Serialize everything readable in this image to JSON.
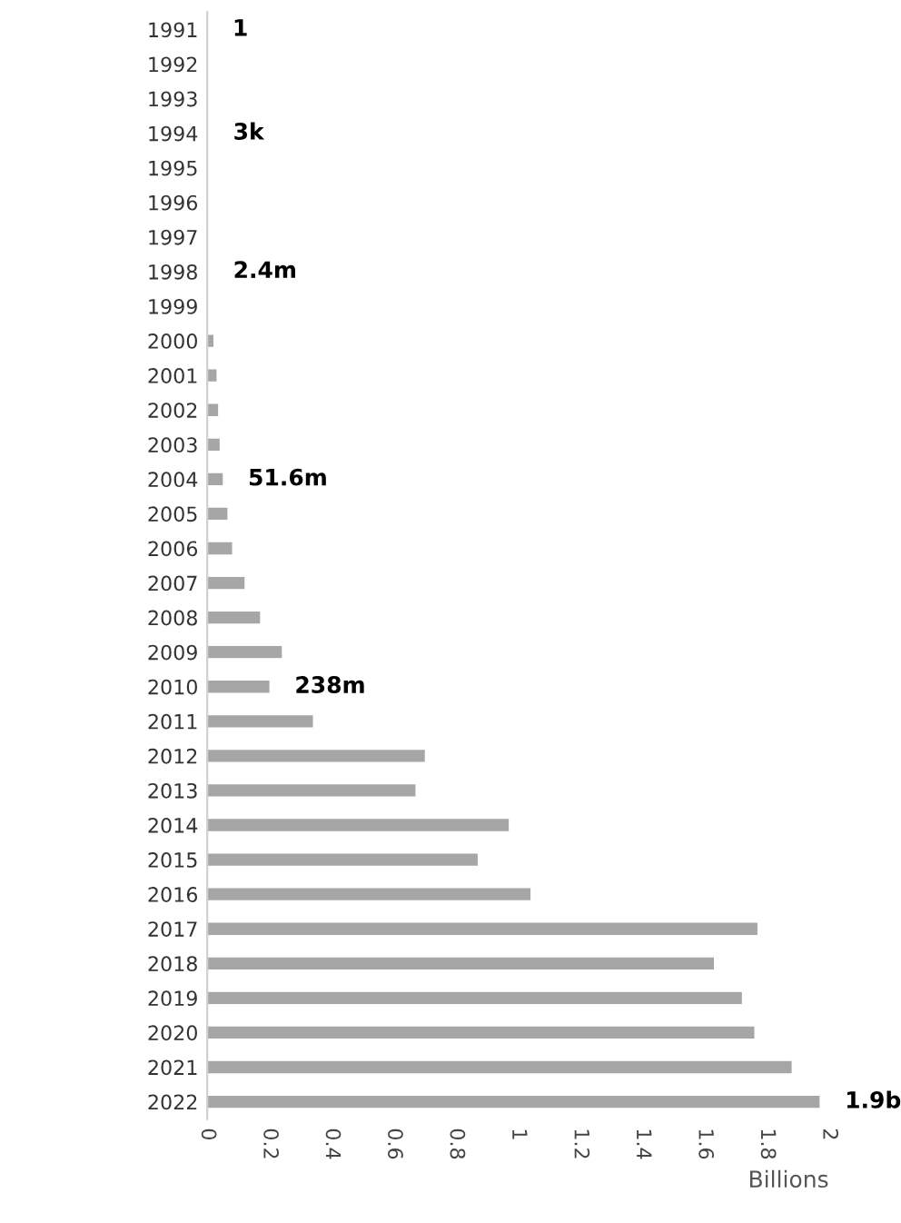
{
  "chart_data": {
    "type": "bar",
    "orientation": "horizontal",
    "xlabel": "Billions",
    "categories": [
      "1991",
      "1992",
      "1993",
      "1994",
      "1995",
      "1996",
      "1997",
      "1998",
      "1999",
      "2000",
      "2001",
      "2002",
      "2003",
      "2004",
      "2005",
      "2006",
      "2007",
      "2008",
      "2009",
      "2010",
      "2011",
      "2012",
      "2013",
      "2014",
      "2015",
      "2016",
      "2017",
      "2018",
      "2019",
      "2020",
      "2021",
      "2022"
    ],
    "values": [
      0,
      0,
      0,
      0.002,
      0.002,
      0.002,
      0.002,
      0.002,
      0.002,
      0.02,
      0.03,
      0.035,
      0.04,
      0.05,
      0.065,
      0.08,
      0.12,
      0.17,
      0.24,
      0.2,
      0.34,
      0.7,
      0.67,
      0.97,
      0.87,
      1.04,
      1.77,
      1.63,
      1.72,
      1.76,
      1.88,
      1.97
    ],
    "color": "#a6a6a6",
    "xlim": [
      0,
      2
    ],
    "xticks": [
      0,
      0.2,
      0.4,
      0.6,
      0.8,
      1,
      1.2,
      1.4,
      1.6,
      1.8,
      2
    ],
    "grid": false,
    "annotations": [
      {
        "text": "1",
        "x": 0,
        "y": "1991"
      },
      {
        "text": "3k",
        "x": 0.002,
        "y": "1994"
      },
      {
        "text": "2.4m",
        "x": 0.002,
        "y": "1998"
      },
      {
        "text": "51.6m",
        "x": 0.05,
        "y": "2004"
      },
      {
        "text": "238m",
        "x": 0.2,
        "y": "2010"
      },
      {
        "text": "1.9b",
        "x": 1.97,
        "y": "2022"
      }
    ]
  }
}
